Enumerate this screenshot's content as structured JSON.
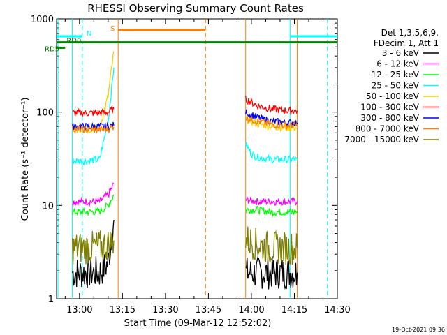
{
  "chart_data": {
    "type": "line",
    "title": "RHESSI Observing Summary Count Rates",
    "xlabel": "Start Time (09-Mar-12 12:52:02)",
    "ylabel": "Count Rate (s⁻¹ detector⁻¹)",
    "yscale": "log",
    "xunit": "minutes after 12:52:02 (ticks labelled HH:MM)",
    "xlim": [
      0,
      98
    ],
    "ylim": [
      1,
      1000
    ],
    "xticks": [
      {
        "label": "13:00",
        "x": 8
      },
      {
        "label": "13:15",
        "x": 23
      },
      {
        "label": "13:30",
        "x": 38
      },
      {
        "label": "13:45",
        "x": 53
      },
      {
        "label": "14:00",
        "x": 68
      },
      {
        "label": "14:15",
        "x": 83
      },
      {
        "label": "14:30",
        "x": 98
      }
    ],
    "yticks": [
      {
        "label": "1",
        "y": 1
      },
      {
        "label": "10",
        "y": 10
      },
      {
        "label": "100",
        "y": 100
      },
      {
        "label": "1000",
        "y": 1000
      }
    ],
    "legend": {
      "placement": "right",
      "header": [
        "Det 1,3,5,6,9,",
        "FDecim 1, Att 1"
      ]
    },
    "series": [
      {
        "name": "3 - 6 keV",
        "color": "#000000",
        "segments": [
          [
            [
              5.5,
              1.9
            ],
            [
              15,
              1.9
            ],
            [
              18,
              2.4
            ],
            [
              20,
              7
            ]
          ],
          [
            [
              66,
              1.9
            ],
            [
              75,
              1.9
            ],
            [
              84,
              1.9
            ]
          ]
        ]
      },
      {
        "name": "6 - 12 keV",
        "color": "#ff00ff",
        "segments": [
          [
            [
              5.5,
              11
            ],
            [
              10,
              11
            ],
            [
              15,
              11
            ],
            [
              18,
              13
            ],
            [
              20,
              17
            ]
          ],
          [
            [
              66,
              11.5
            ],
            [
              70,
              11
            ],
            [
              75,
              11
            ],
            [
              80,
              11
            ],
            [
              84,
              11
            ]
          ]
        ]
      },
      {
        "name": "12 - 25 keV",
        "color": "#00ff00",
        "segments": [
          [
            [
              5.5,
              8.5
            ],
            [
              10,
              8.5
            ],
            [
              15,
              8.6
            ],
            [
              18,
              10
            ],
            [
              20,
              13
            ]
          ],
          [
            [
              66,
              9
            ],
            [
              70,
              9
            ],
            [
              75,
              8.5
            ],
            [
              80,
              8.5
            ],
            [
              84,
              8.5
            ]
          ]
        ]
      },
      {
        "name": "25 - 50 keV",
        "color": "#00ffff",
        "segments": [
          [
            [
              5.5,
              30
            ],
            [
              10,
              30
            ],
            [
              15,
              31
            ],
            [
              18,
              80
            ],
            [
              20,
              300
            ]
          ],
          [
            [
              66,
              45
            ],
            [
              68,
              36
            ],
            [
              70,
              33
            ],
            [
              75,
              31
            ],
            [
              80,
              31
            ],
            [
              84,
              31
            ]
          ]
        ]
      },
      {
        "name": "50 - 100 keV",
        "color": "#ffcc00",
        "segments": [
          [
            [
              5.5,
              65
            ],
            [
              10,
              65
            ],
            [
              15,
              67
            ],
            [
              18,
              150
            ],
            [
              20,
              450
            ]
          ],
          [
            [
              66,
              85
            ],
            [
              70,
              75
            ],
            [
              75,
              70
            ],
            [
              80,
              68
            ],
            [
              84,
              68
            ]
          ]
        ]
      },
      {
        "name": "100 - 300 keV",
        "color": "#ff0000",
        "segments": [
          [
            [
              5.5,
              98
            ],
            [
              10,
              98
            ],
            [
              15,
              98
            ],
            [
              18,
              100
            ],
            [
              20,
              108
            ]
          ],
          [
            [
              66,
              138
            ],
            [
              70,
              118
            ],
            [
              75,
              108
            ],
            [
              80,
              104
            ],
            [
              84,
              104
            ]
          ]
        ]
      },
      {
        "name": "300 - 800 keV",
        "color": "#0000ff",
        "segments": [
          [
            [
              5.5,
              70
            ],
            [
              10,
              70
            ],
            [
              15,
              70
            ],
            [
              18,
              70
            ],
            [
              20,
              72
            ]
          ],
          [
            [
              66,
              100
            ],
            [
              70,
              88
            ],
            [
              75,
              80
            ],
            [
              80,
              77
            ],
            [
              84,
              77
            ]
          ]
        ]
      },
      {
        "name": "800 - 7000 keV",
        "color": "#ff8000",
        "segments": [
          [
            [
              5.5,
              66
            ],
            [
              10,
              65
            ],
            [
              15,
              65
            ],
            [
              18,
              66
            ],
            [
              20,
              70
            ]
          ],
          [
            [
              66,
              88
            ],
            [
              70,
              80
            ],
            [
              75,
              74
            ],
            [
              80,
              72
            ],
            [
              84,
              72
            ]
          ]
        ]
      },
      {
        "name": "7000 - 15000 keV",
        "color": "#808000",
        "segments": [
          [
            [
              5.5,
              3.5
            ],
            [
              10,
              3.5
            ],
            [
              15,
              3.6
            ],
            [
              18,
              3.8
            ],
            [
              20,
              4.2
            ]
          ],
          [
            [
              66,
              4.3
            ],
            [
              70,
              3.8
            ],
            [
              75,
              3.5
            ],
            [
              80,
              3.5
            ],
            [
              84,
              3.5
            ]
          ]
        ]
      }
    ],
    "vertical_markers": [
      {
        "x": 0.5,
        "color": "#00ffff",
        "style": "solid"
      },
      {
        "x": 5.5,
        "color": "#00ffff",
        "style": "solid"
      },
      {
        "x": 9,
        "color": "#00ffff",
        "style": "dashed"
      },
      {
        "x": 21.5,
        "color": "#ff8000",
        "style": "solid"
      },
      {
        "x": 52,
        "color": "#ff8000",
        "style": "dashed"
      },
      {
        "x": 66,
        "color": "#ff8000",
        "style": "solid"
      },
      {
        "x": 81.5,
        "color": "#00ffff",
        "style": "solid"
      },
      {
        "x": 84,
        "color": "#ff8000",
        "style": "solid"
      },
      {
        "x": 94.5,
        "color": "#00ffff",
        "style": "dashed"
      }
    ],
    "flag_bars": [
      {
        "label": "N",
        "color": "#00ffff",
        "y": 650,
        "ranges": [
          [
            0,
            9
          ],
          [
            81.5,
            98
          ]
        ]
      },
      {
        "label": "S",
        "color": "#ff8000",
        "y": 760,
        "ranges": [
          [
            21.5,
            52
          ]
        ]
      },
      {
        "label": "RD0",
        "color": "#008000",
        "y": 560,
        "ranges": [
          [
            0,
            98
          ]
        ]
      },
      {
        "label": "RD5",
        "color": "#008000",
        "y": 490,
        "ranges": [
          [
            0,
            3
          ]
        ]
      }
    ],
    "footer_date": "19-Oct-2021 09:36"
  }
}
